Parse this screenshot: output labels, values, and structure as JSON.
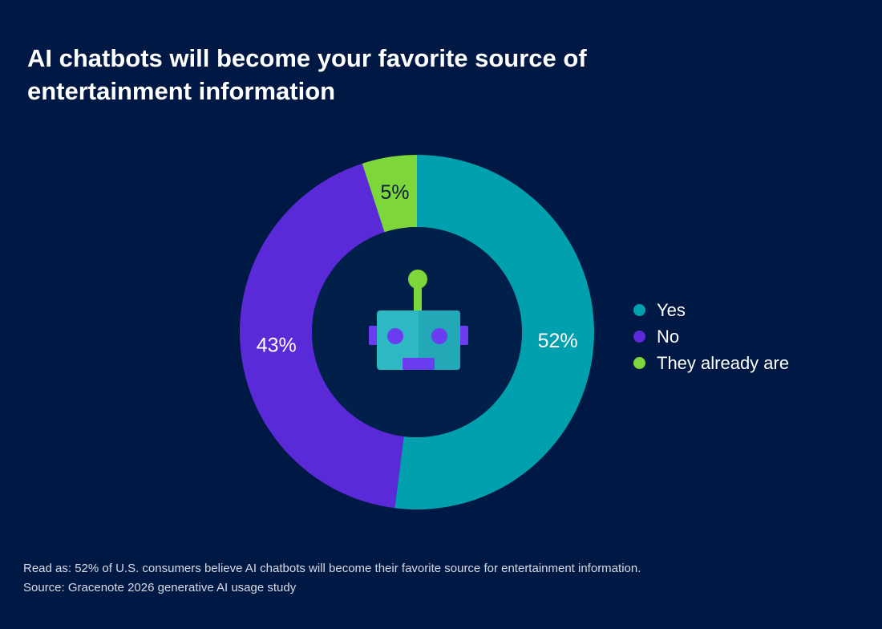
{
  "title": {
    "line1": "AI chatbots will become your favorite source of",
    "line2": "entertainment information"
  },
  "chart_data": {
    "type": "pie",
    "variant": "donut",
    "title": "AI chatbots will become your favorite source of entertainment information",
    "slices": [
      {
        "name": "Yes",
        "value": 52,
        "label": "52%",
        "color": "#00A0AE"
      },
      {
        "name": "No",
        "value": 43,
        "label": "43%",
        "color": "#5A2AD8"
      },
      {
        "name": "They already are",
        "value": 5,
        "label": "5%",
        "color": "#7DD63A"
      }
    ],
    "legend_position": "right",
    "center_icon": "robot-icon"
  },
  "footnote": {
    "read_as": "Read as: 52% of U.S. consumers believe AI chatbots will become their favorite source for entertainment information.",
    "source": "Source: Gracenote 2026 generative AI usage study"
  },
  "colors": {
    "background": "#001844",
    "donut_hole": "#00204A",
    "robot_head": "#2EB8C4",
    "robot_head_shade": "#22A8B6",
    "robot_accent": "#6B3DF0",
    "robot_antenna": "#7DD63A"
  }
}
